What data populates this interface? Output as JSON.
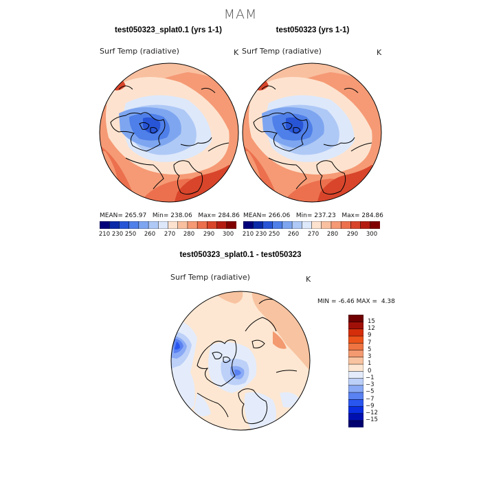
{
  "page_title": "MAM",
  "panels": [
    {
      "title": "test050323_splat0.1 (yrs 1-1)",
      "variable": "Surf Temp (radiative)",
      "unit": "K",
      "stats": {
        "mean_label": "MEAN=",
        "mean": "265.97",
        "min_label": "Min=",
        "min": "238.06",
        "max_label": "Max=",
        "max": "284.86"
      }
    },
    {
      "title": "test050323 (yrs 1-1)",
      "variable": "Surf Temp (radiative)",
      "unit": "K",
      "stats": {
        "mean_label": "MEAN=",
        "mean": "266.06",
        "min_label": "Min=",
        "min": "237.23",
        "max_label": "Max=",
        "max": "284.86"
      }
    },
    {
      "title": "test050323_splat0.1 - test050323",
      "variable": "Surf Temp (radiative)",
      "unit": "K",
      "stats": {
        "min_label": "MIN =",
        "min": "-6.46",
        "max_label": "MAX =",
        "max": "4.38"
      }
    }
  ],
  "abs_colorbar": {
    "colors": [
      "#00007a",
      "#0a2aa8",
      "#2855d6",
      "#4f7fe8",
      "#7ea6f0",
      "#afc9f6",
      "#dde8fb",
      "#fde3cf",
      "#f9c0a0",
      "#f59a75",
      "#ec704e",
      "#d8452b",
      "#b41c12",
      "#800000"
    ],
    "tick_labels": [
      "210",
      "230",
      "250",
      "260",
      "270",
      "280",
      "290",
      "300"
    ]
  },
  "diff_colorbar": {
    "colors": [
      "#000070",
      "#0010b0",
      "#0a2ee0",
      "#2a56f0",
      "#5a82f2",
      "#8aaaf5",
      "#bcd0f8",
      "#e4ecfb",
      "#fde7d2",
      "#f8c3a0",
      "#f39a70",
      "#ee7442",
      "#ec531a",
      "#d42e0a",
      "#a01008",
      "#700000"
    ],
    "tick_labels": [
      "15",
      "12",
      "9",
      "7",
      "5",
      "3",
      "1",
      "0",
      "−1",
      "−3",
      "−5",
      "−7",
      "−9",
      "−12",
      "−15"
    ]
  }
}
